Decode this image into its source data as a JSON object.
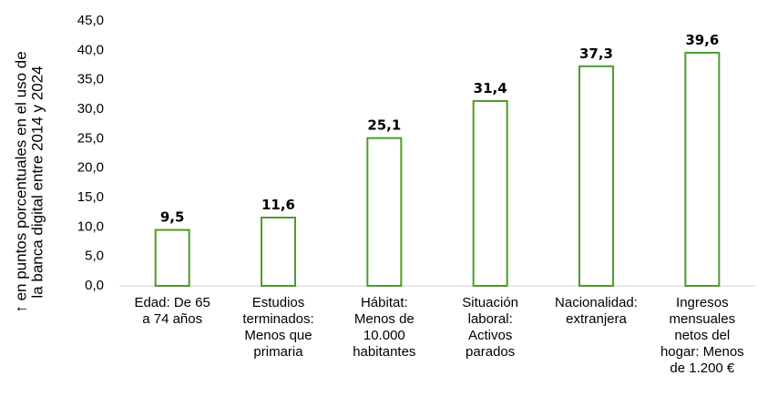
{
  "chart_data": {
    "type": "bar",
    "ylabel_lines": [
      "↑ en puntos porcentuales en el uso de",
      "la banca digital entre 2014 y 2024"
    ],
    "ylim": [
      0,
      45
    ],
    "ytick_labels": [
      "0,0",
      "5,0",
      "10,0",
      "15,0",
      "20,0",
      "25,0",
      "30,0",
      "35,0",
      "40,0",
      "45,0"
    ],
    "categories": [
      [
        "Edad: De 65",
        "a 74 años"
      ],
      [
        "Estudios",
        "terminados:",
        "Menos que",
        "primaria"
      ],
      [
        "Hábitat:",
        "Menos de",
        "10.000",
        "habitantes"
      ],
      [
        "Situación",
        "laboral:",
        "Activos",
        "parados"
      ],
      [
        "Nacionalidad:",
        "extranjera"
      ],
      [
        "Ingresos",
        "mensuales",
        "netos del",
        "hogar: Menos",
        "de 1.200 €"
      ]
    ],
    "values": [
      9.5,
      11.6,
      25.1,
      31.4,
      37.3,
      39.6
    ],
    "value_labels": [
      "9,5",
      "11,6",
      "25,1",
      "31,4",
      "37,3",
      "39,6"
    ],
    "grid": false,
    "bar_style": "outline",
    "bar_color": "#4e9a2b",
    "axis_color": "#d9d9d9"
  }
}
